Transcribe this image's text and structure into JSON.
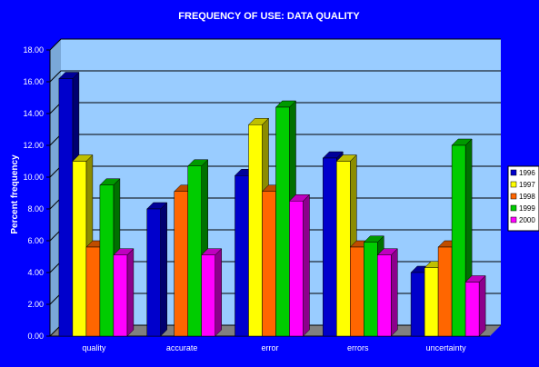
{
  "chart_data": {
    "type": "bar",
    "title": "FREQUENCY OF USE: DATA QUALITY",
    "ylabel": "Percent frequency",
    "xlabel": "",
    "ylim": [
      0,
      18
    ],
    "y_ticks": [
      "0.00",
      "2.00",
      "4.00",
      "6.00",
      "8.00",
      "10.00",
      "12.00",
      "14.00",
      "16.00",
      "18.00"
    ],
    "categories": [
      "quality",
      "accurate",
      "error",
      "errors",
      "uncertainty"
    ],
    "series": [
      {
        "name": "1996",
        "color": "#0000cc",
        "values": [
          16.2,
          8.0,
          10.1,
          11.2,
          4.0
        ]
      },
      {
        "name": "1997",
        "color": "#ffff00",
        "values": [
          11.0,
          null,
          13.3,
          11.0,
          4.3
        ]
      },
      {
        "name": "1998",
        "color": "#ff6600",
        "values": [
          5.6,
          9.1,
          9.1,
          5.6,
          5.6
        ]
      },
      {
        "name": "1999",
        "color": "#00cc00",
        "values": [
          9.5,
          10.7,
          14.4,
          5.9,
          12.0
        ]
      },
      {
        "name": "2000",
        "color": "#ff00ff",
        "values": [
          5.1,
          5.1,
          8.5,
          5.1,
          3.4
        ]
      }
    ],
    "grid": true,
    "legend_position": "right",
    "plot_background": "#99ccff",
    "page_background": "#0000ff"
  }
}
